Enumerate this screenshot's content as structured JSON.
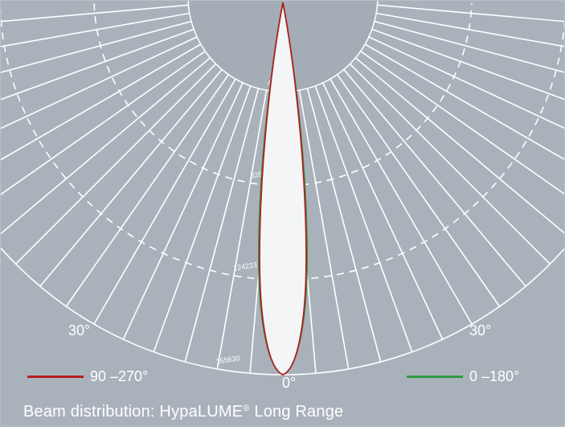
{
  "diagram": {
    "angle_labels": {
      "left": "30°",
      "right": "30°",
      "bottom": "0°"
    },
    "rings": [
      {
        "label": "41408"
      },
      {
        "label": "82815"
      },
      {
        "label": "124223"
      },
      {
        "label": "165630"
      }
    ],
    "legend": [
      {
        "label": "90 –270°",
        "color": "#b21f24"
      },
      {
        "label": "0 –180°",
        "color": "#2e9a3f"
      }
    ],
    "caption": {
      "prefix": "Beam distribution: HypaLUME",
      "mark": "®",
      "suffix": " Long Range"
    },
    "colors": {
      "background": "#a9b2bb",
      "grid": "#ffffff",
      "beam_fill": "#ffffff"
    }
  }
}
